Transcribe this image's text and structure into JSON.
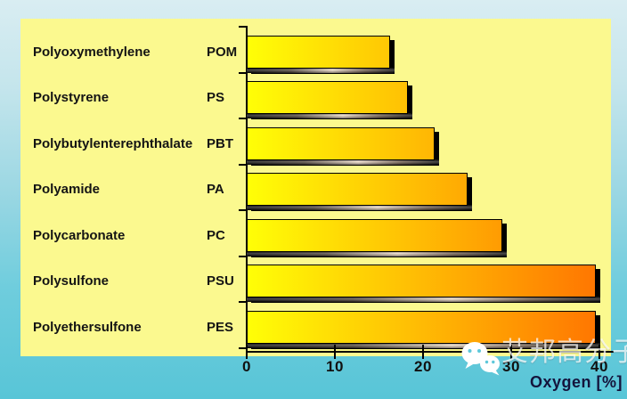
{
  "chart_data": {
    "type": "bar",
    "orientation": "horizontal",
    "bars": [
      {
        "label": "Polyoxymethylene",
        "abbr": "POM",
        "value": 16.3
      },
      {
        "label": "Polystyrene",
        "abbr": "PS",
        "value": 18.3
      },
      {
        "label": "Polybutylenterephthalate",
        "abbr": "PBT",
        "value": 21.3
      },
      {
        "label": "Polyamide",
        "abbr": "PA",
        "value": 25.0
      },
      {
        "label": "Polycarbonate",
        "abbr": "PC",
        "value": 29.0
      },
      {
        "label": "Polysulfone",
        "abbr": "PSU",
        "value": 39.6
      },
      {
        "label": "Polyethersulfone",
        "abbr": "PES",
        "value": 39.6
      }
    ],
    "xlabel": "Oxygen [%]",
    "xlim": [
      0,
      40
    ],
    "xticks": [
      0,
      10,
      20,
      30,
      40
    ],
    "grid": false,
    "legend": false,
    "bar_gradient_start": "#ffff06",
    "bar_gradient_end": "#ff7501",
    "bar_shadow_color": "#000000",
    "panel_background": "#fbf98f"
  },
  "background": {
    "gradient_top": "#d9edf2",
    "gradient_bottom": "#58c5d7"
  },
  "axis": {
    "line_color": "#000000",
    "tick_label_color": "#111111",
    "xlabel_color": "#14143c"
  },
  "watermark": {
    "icon": "wechat-icon",
    "text": "艾邦高分子",
    "color": "rgba(255,255,255,0.72)"
  }
}
